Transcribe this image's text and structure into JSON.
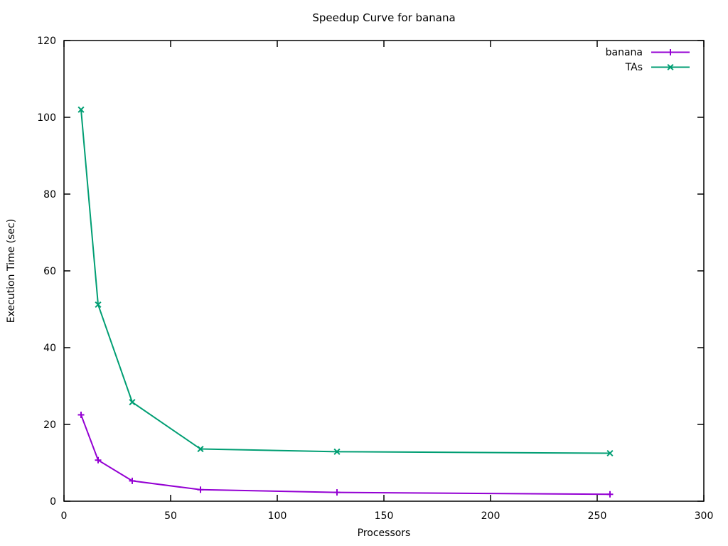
{
  "chart_data": {
    "type": "line",
    "title": "Speedup Curve for banana",
    "xlabel": "Processors",
    "ylabel": "Execution Time (sec)",
    "xlim": [
      0,
      300
    ],
    "ylim": [
      0,
      120
    ],
    "xticks": [
      0,
      50,
      100,
      150,
      200,
      250,
      300
    ],
    "yticks": [
      0,
      20,
      40,
      60,
      80,
      100,
      120
    ],
    "x": [
      8,
      16,
      32,
      64,
      128,
      256
    ],
    "series": [
      {
        "name": "banana",
        "color": "#9400d3",
        "marker": "plus",
        "values": [
          22.5,
          10.7,
          5.3,
          3.0,
          2.3,
          1.8
        ]
      },
      {
        "name": "TAs",
        "color": "#009e73",
        "marker": "cross",
        "values": [
          102.0,
          51.2,
          25.8,
          13.6,
          12.9,
          12.5
        ]
      }
    ],
    "legend_position": "top-right-inside",
    "grid": false,
    "background_color": "#ffffff",
    "axis_color": "#000000"
  }
}
